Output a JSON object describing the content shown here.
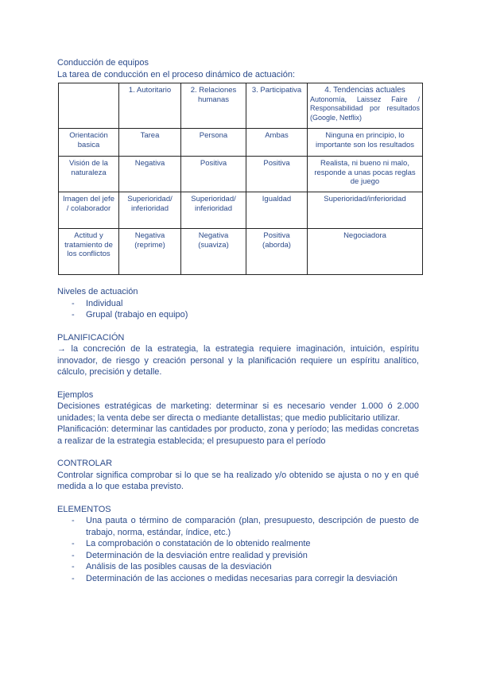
{
  "title": "Conducción de equipos",
  "subtitle": "La tarea de conducción en el proceso dinámico de actuación:",
  "table": {
    "headers": [
      "",
      "1. Autoritario",
      "2. Relaciones humanas",
      "3. Participativa",
      "4. Tendencias actuales"
    ],
    "header_note": "Autonomía, Laissez Faire / Responsabilidad por resultados (Google, Netflix)",
    "rows": [
      [
        "Orientación basica",
        "Tarea",
        "Persona",
        "Ambas",
        "Ninguna en principio, lo importante son los resultados"
      ],
      [
        "Visión de la naturaleza",
        "Negativa",
        "Positiva",
        "Positiva",
        "Realista, ni bueno ni malo, responde a unas pocas reglas de juego"
      ],
      [
        "Imagen del jefe / colaborador",
        "Superioridad/ inferioridad",
        "Superioridad/ inferioridad",
        "Igualdad",
        "Superioridad/inferioridad"
      ],
      [
        "Actitud y tratamiento de los conflictos",
        "Negativa (reprime)",
        "Negativa (suaviza)",
        "Positiva (aborda)",
        "Negociadora"
      ]
    ]
  },
  "niveles": {
    "heading": "Niveles de actuación",
    "items": [
      "Individual",
      "Grupal (trabajo en equipo)"
    ]
  },
  "planificacion": {
    "heading": "PLANIFICACIÓN",
    "text": "→ la concreción de la estrategia, la estrategia requiere imaginación, intuición, espíritu innovador, de riesgo y creación personal y la planificación requiere un espíritu analítico, cálculo, precisión y detalle."
  },
  "ejemplos": {
    "heading": "Ejemplos",
    "p1": "Decisiones estratégicas de marketing: determinar si es necesario vender 1.000 ó 2.000 unidades; la venta debe ser directa o mediante detallistas; que medio publicitario utilizar.",
    "p2": "Planificación: determinar las cantidades por producto, zona y período; las medidas concretas a realizar de la estrategia establecida; el presupuesto para el período"
  },
  "controlar": {
    "heading": "CONTROLAR",
    "text": "Controlar significa comprobar si lo que se ha realizado y/o obtenido se ajusta o no y en qué medida a lo que estaba previsto."
  },
  "elementos": {
    "heading": "ELEMENTOS",
    "items": [
      "Una pauta o término de comparación (plan, presupuesto, descripción de puesto de trabajo, norma, estándar, índice, etc.)",
      "La comprobación o constatación de lo obtenido realmente",
      "Determinación de la desviación entre realidad y previsión",
      "Análisis de las posibles causas de la desviación",
      "Determinación de las acciones o medidas necesarias para corregir la desviación"
    ]
  }
}
